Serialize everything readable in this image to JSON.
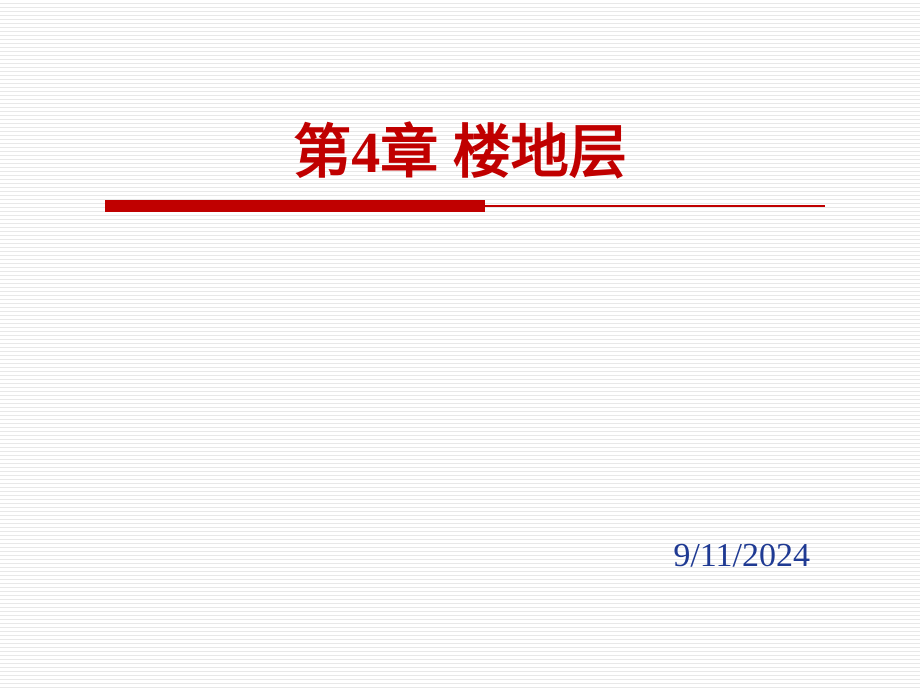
{
  "slide": {
    "title": "第4章 楼地层",
    "title_color": "#c00000",
    "title_fontsize": 58,
    "date": "9/11/2024",
    "date_color": "#1f3a93",
    "date_fontsize": 34,
    "underline": {
      "color": "#c00000",
      "thick_width": 380,
      "thin_width": 345,
      "total_width": 720
    },
    "background": {
      "base_color": "#ffffff",
      "line_color": "#e8e8e8"
    }
  }
}
